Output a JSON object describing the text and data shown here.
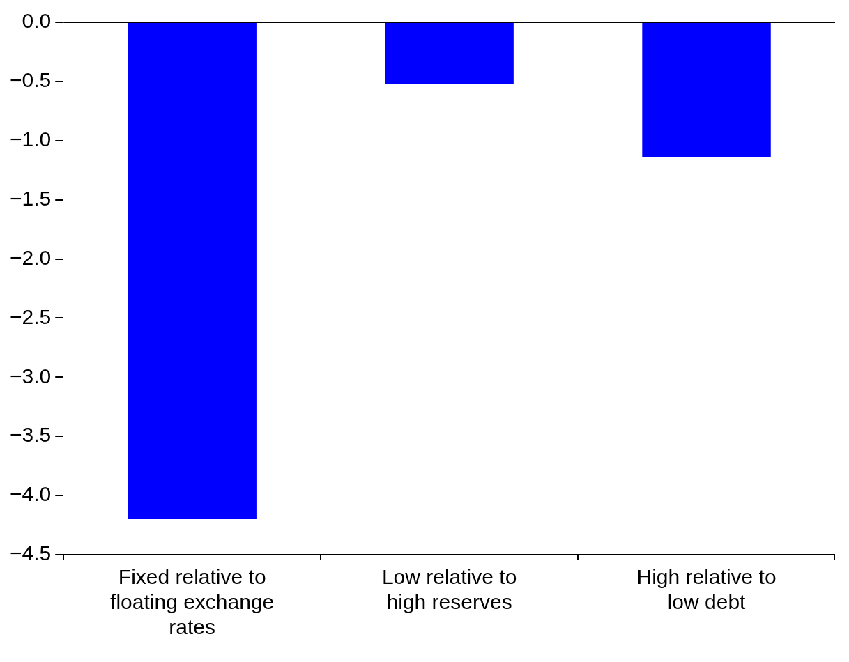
{
  "chart_data": {
    "type": "bar",
    "categories": [
      "Fixed relative to floating exchange rates",
      "Low relative to high reserves",
      "High relative to low debt"
    ],
    "values": [
      -4.2,
      -0.52,
      -1.14
    ],
    "color": "#0000ff",
    "ylim": [
      -4.5,
      0
    ],
    "yticks": [
      {
        "value": 0,
        "label": "0.0"
      },
      {
        "value": -0.5,
        "label": "−0.5"
      },
      {
        "value": -1,
        "label": "−1.0"
      },
      {
        "value": -1.5,
        "label": "−1.5"
      },
      {
        "value": -2,
        "label": "−2.0"
      },
      {
        "value": -2.5,
        "label": "−2.5"
      },
      {
        "value": -3,
        "label": "−3.0"
      },
      {
        "value": -3.5,
        "label": "−3.5"
      },
      {
        "value": -4,
        "label": "−4.0"
      },
      {
        "value": -4.5,
        "label": "−4.5"
      }
    ],
    "ref_lines": [
      {
        "axis": "y",
        "value": 0
      }
    ],
    "grid": false,
    "legend": false
  }
}
